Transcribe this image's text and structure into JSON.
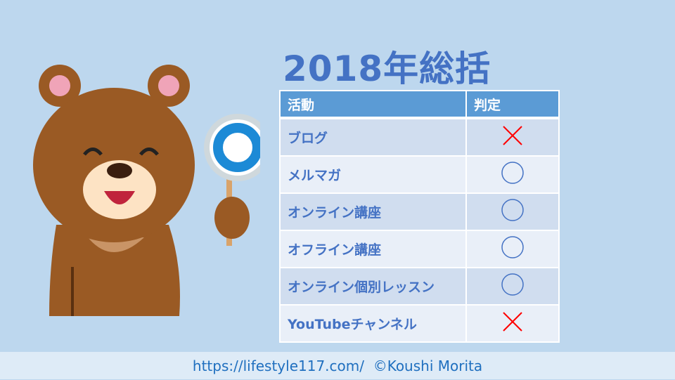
{
  "title": "2018年総括",
  "table": {
    "headers": [
      "活動",
      "判定"
    ],
    "rows": [
      {
        "activity": "ブログ",
        "verdict": "✕",
        "verdict_icon": "cross-icon"
      },
      {
        "activity": "メルマガ",
        "verdict": "○",
        "verdict_icon": "circle-icon"
      },
      {
        "activity": "オンライン講座",
        "verdict": "○",
        "verdict_icon": "circle-icon"
      },
      {
        "activity": "オフライン講座",
        "verdict": "○",
        "verdict_icon": "circle-icon"
      },
      {
        "activity": "オンライン個別レッスン",
        "verdict": "○",
        "verdict_icon": "circle-icon"
      },
      {
        "activity": "YouTubeチャンネル",
        "verdict": "✕",
        "verdict_icon": "cross-icon"
      }
    ]
  },
  "footer": "https://lifestyle117.com/  ©Koushi Morita",
  "colors": {
    "accent": "#4472c4",
    "header": "#5b9bd5",
    "cross": "#ff0000",
    "background": "#bdd7ee"
  }
}
